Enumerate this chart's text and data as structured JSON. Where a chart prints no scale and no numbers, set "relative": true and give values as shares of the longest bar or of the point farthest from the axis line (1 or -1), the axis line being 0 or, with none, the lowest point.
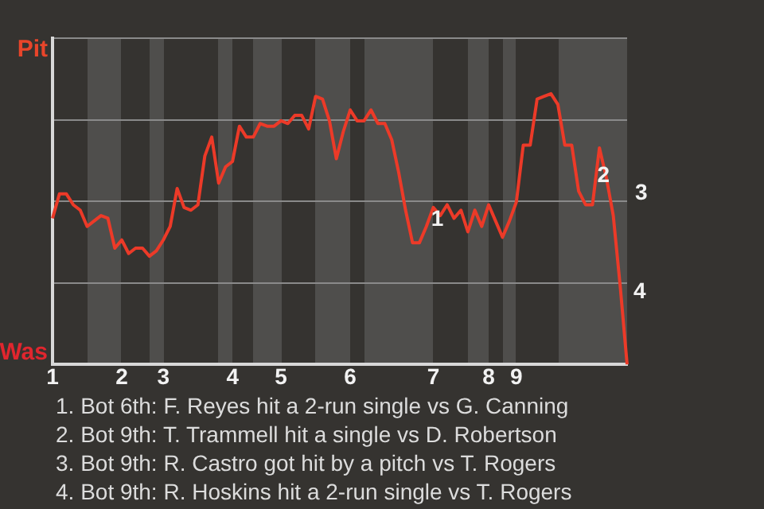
{
  "chart_data": {
    "type": "line",
    "relative": true,
    "categories": [
      "1",
      null,
      null,
      null,
      null,
      null,
      null,
      null,
      null,
      null,
      "2",
      null,
      null,
      null,
      null,
      null,
      "3",
      null,
      null,
      null,
      null,
      null,
      null,
      null,
      null,
      null,
      "4",
      null,
      null,
      null,
      null,
      null,
      null,
      "5",
      null,
      null,
      null,
      null,
      null,
      null,
      null,
      null,
      null,
      "6",
      null,
      null,
      null,
      null,
      null,
      null,
      null,
      null,
      null,
      null,
      null,
      "7",
      null,
      null,
      null,
      null,
      null,
      null,
      null,
      "8",
      null,
      null,
      null,
      "9",
      null,
      null,
      null,
      null,
      null,
      null,
      null,
      null,
      null,
      null,
      null,
      null,
      null,
      null,
      null,
      null
    ],
    "values": [
      0.54,
      0.63,
      0.63,
      0.59,
      0.57,
      0.51,
      0.53,
      0.55,
      0.54,
      0.43,
      0.46,
      0.41,
      0.43,
      0.43,
      0.4,
      0.42,
      0.46,
      0.51,
      0.65,
      0.58,
      0.57,
      0.59,
      0.77,
      0.84,
      0.67,
      0.73,
      0.75,
      0.88,
      0.84,
      0.84,
      0.89,
      0.88,
      0.88,
      0.9,
      0.89,
      0.92,
      0.92,
      0.87,
      0.99,
      0.98,
      0.9,
      0.76,
      0.86,
      0.94,
      0.9,
      0.9,
      0.94,
      0.89,
      0.89,
      0.83,
      0.71,
      0.57,
      0.45,
      0.45,
      0.51,
      0.58,
      0.55,
      0.59,
      0.54,
      0.57,
      0.49,
      0.57,
      0.51,
      0.59,
      0.53,
      0.47,
      0.53,
      0.6,
      0.81,
      0.81,
      0.98,
      0.99,
      1,
      0.96,
      0.81,
      0.81,
      0.64,
      0.59,
      0.59,
      0.8,
      0.69,
      0.55,
      0.29,
      0
    ],
    "color": "#ec3a28",
    "marker": "none",
    "line_style": "solid",
    "grid": "y",
    "annotations": [
      "Pit",
      "Was",
      "1",
      "2",
      "3",
      "4",
      "1. Bot 6th: F. Reyes hit a 2-run single vs G. Canning",
      "2. Bot 9th: T. Trammell hit a single vs D. Robertson",
      "3. Bot 9th: R. Castro got hit by a pitch vs T. Rogers",
      "4. Bot 9th: R. Hoskins hit a 2-run single vs T. Rogers"
    ]
  }
}
